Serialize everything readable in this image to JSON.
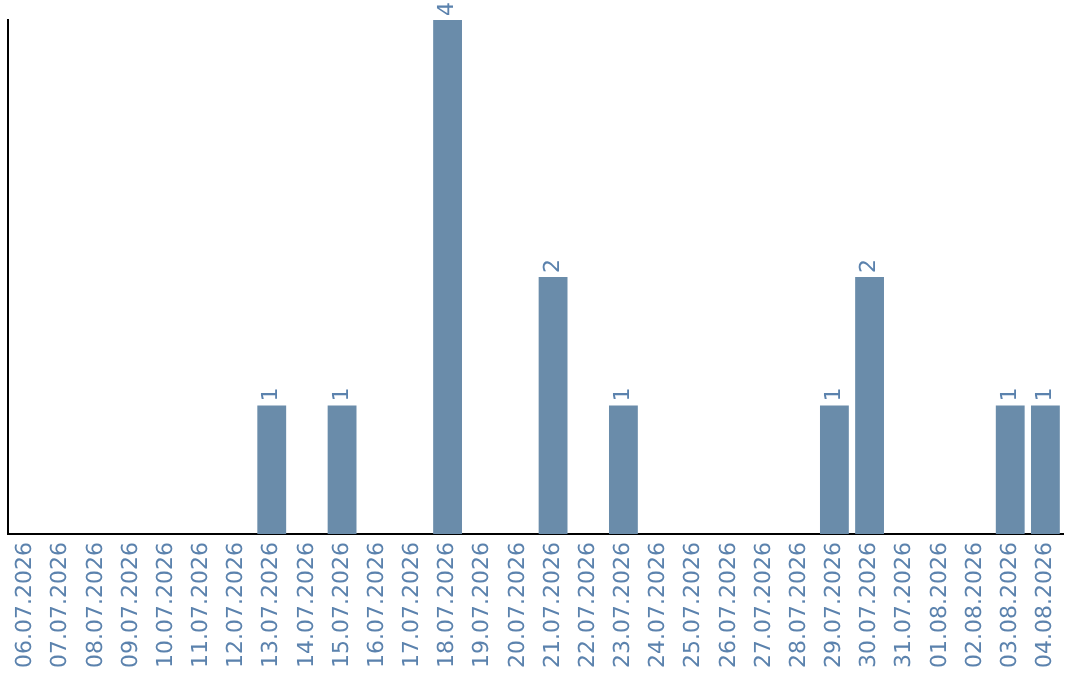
{
  "chart_data": {
    "type": "bar",
    "categories": [
      "06.07.2026",
      "07.07.2026",
      "08.07.2026",
      "09.07.2026",
      "10.07.2026",
      "11.07.2026",
      "12.07.2026",
      "13.07.2026",
      "14.07.2026",
      "15.07.2026",
      "16.07.2026",
      "17.07.2026",
      "18.07.2026",
      "19.07.2026",
      "20.07.2026",
      "21.07.2026",
      "22.07.2026",
      "23.07.2026",
      "24.07.2026",
      "25.07.2026",
      "26.07.2026",
      "27.07.2026",
      "28.07.2026",
      "29.07.2026",
      "30.07.2026",
      "31.07.2026",
      "01.08.2026",
      "02.08.2026",
      "03.08.2026",
      "04.08.2026"
    ],
    "values": [
      0,
      0,
      0,
      0,
      0,
      0,
      0,
      1,
      0,
      1,
      0,
      0,
      4,
      0,
      0,
      2,
      0,
      1,
      0,
      0,
      0,
      0,
      0,
      1,
      2,
      0,
      0,
      0,
      1,
      1
    ],
    "value_labels": [
      null,
      null,
      null,
      null,
      null,
      null,
      null,
      "1",
      null,
      "1",
      null,
      null,
      "4",
      null,
      null,
      "2",
      null,
      "1",
      null,
      null,
      null,
      null,
      null,
      "1",
      "2",
      null,
      null,
      null,
      "1",
      "1"
    ],
    "color": "#6a8caa",
    "tick_labels": "x",
    "grid": false,
    "legend": false
  }
}
